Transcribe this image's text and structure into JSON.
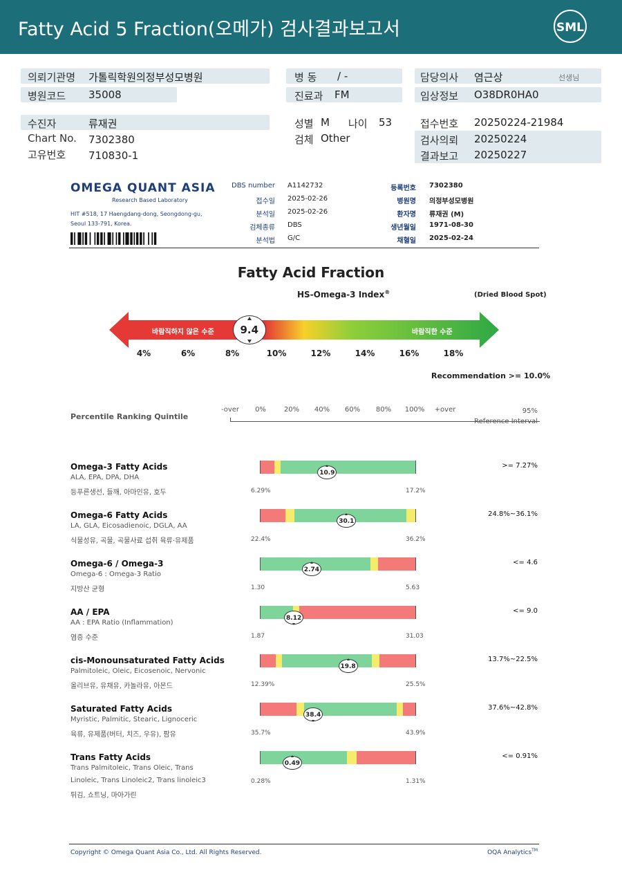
{
  "header": {
    "title": "Fatty Acid 5 Fraction(오메가) 검사결과보고서",
    "logo_text": "SML"
  },
  "patient_info": {
    "institution_label": "의뢰기관명",
    "institution": "가톨릭학원의정부성모병원",
    "hospital_code_label": "병원코드",
    "hospital_code": "35008",
    "ward_label": "병 동",
    "ward": "/ -",
    "dept_label": "진료과",
    "dept": "FM",
    "doctor_label": "담당의사",
    "doctor": "염근상",
    "doctor_suffix": "선생님",
    "clinical_label": "임상정보",
    "clinical": "O38DR0HA0",
    "patient_label": "수진자",
    "patient": "류재권",
    "chart_label": "Chart No.",
    "chart": "7302380",
    "id_label": "고유번호",
    "id": "710830-1",
    "sex_label": "성별",
    "sex": "M",
    "age_label": "나이",
    "age": "53",
    "specimen_label": "검체",
    "specimen": "Other",
    "receipt_label": "접수번호",
    "receipt": "20250224-21984",
    "request_label": "검사의뢰",
    "request": "20250224",
    "report_label": "결과보고",
    "report": "20250227"
  },
  "lab": {
    "name": "OMEGA QUANT ASIA",
    "tagline": "Research Based Laboratory",
    "address1": "HIT #518, 17 Haengdang-dong, Seongdong-gu,",
    "address2": "Seoul 133-791, Korea.",
    "fields_left": [
      {
        "label": "DBS number",
        "value": "A1142732"
      },
      {
        "label": "접수일",
        "value": "2025-02-26"
      },
      {
        "label": "분석일",
        "value": "2025-02-26"
      },
      {
        "label": "검체종류",
        "value": "DBS"
      },
      {
        "label": "분석법",
        "value": "G/C"
      }
    ],
    "fields_right": [
      {
        "label": "등록번호",
        "value": "7302380"
      },
      {
        "label": "병원명",
        "value": "의정부성모병원"
      },
      {
        "label": "환자명",
        "value": "류재권 (M)"
      },
      {
        "label": "생년월일",
        "value": "1971-08-30"
      },
      {
        "label": "채혈일",
        "value": "2025-02-24"
      }
    ]
  },
  "report": {
    "title": "Fatty Acid Fraction",
    "index_title": "HS-Omega-3 Index",
    "index_reg": "®",
    "dried": "(Dried Blood Spot)",
    "index_value": "9.4",
    "index_value_num": 9.4,
    "bad_label": "바람직하지 않은 수준",
    "good_label": "바람직한 수준",
    "ticks": [
      "4%",
      "6%",
      "8%",
      "10%",
      "12%",
      "14%",
      "16%",
      "18%"
    ],
    "recommendation": "Recommendation  >= 10.0%"
  },
  "percentile": {
    "label": "Percentile Ranking Quintile",
    "ticks": [
      "-over",
      "0%",
      "20%",
      "40%",
      "60%",
      "80%",
      "100%",
      "+over"
    ],
    "ref_label_1": "95%",
    "ref_label_2": "Reference Interval"
  },
  "rows": [
    {
      "title": "Omega-3 Fatty Acids",
      "sub": "ALA, EPA, DPA, DHA",
      "note": "등푸른생선, 들깨, 아마인유, 호두",
      "note2": "",
      "min": "6.29%",
      "max": "17.2%",
      "value": "10.9",
      "ref": ">= 7.27%",
      "marker_pct": 0.43,
      "arrow": "up",
      "segments": [
        {
          "w": 0.09,
          "c": "#f47a7a"
        },
        {
          "w": 0.04,
          "c": "#f4ec6a"
        },
        {
          "w": 0.87,
          "c": "#7ed49b"
        }
      ]
    },
    {
      "title": "Omega-6 Fatty Acids",
      "sub": "LA, GLA, Eicosadienoic, DGLA, AA",
      "note": "식물성유, 곡물, 곡물사료 섭취 육류·유제품",
      "note2": "",
      "min": "22.4%",
      "max": "36.2%",
      "value": "30.1",
      "ref": "24.8%~36.1%",
      "marker_pct": 0.555,
      "arrow": "up",
      "segments": [
        {
          "w": 0.16,
          "c": "#f47a7a"
        },
        {
          "w": 0.06,
          "c": "#f4ec6a"
        },
        {
          "w": 0.72,
          "c": "#7ed49b"
        },
        {
          "w": 0.06,
          "c": "#f4ec6a"
        }
      ]
    },
    {
      "title": "Omega-6 / Omega-3",
      "sub": "Omega-6 : Omega-3 Ratio",
      "note": "지방산 균형",
      "note2": "",
      "min": "1.30",
      "max": "5.63",
      "value": "2.74",
      "ref": "<= 4.6",
      "marker_pct": 0.33,
      "arrow": "up",
      "segments": [
        {
          "w": 0.71,
          "c": "#7ed49b"
        },
        {
          "w": 0.05,
          "c": "#f4ec6a"
        },
        {
          "w": 0.24,
          "c": "#f47a7a"
        }
      ]
    },
    {
      "title": "AA / EPA",
      "sub": "AA : EPA Ratio (Inflammation)",
      "note": "염증 수준",
      "note2": "",
      "min": "1.87",
      "max": "31.03",
      "value": "8.12",
      "ref": "<= 9.0",
      "marker_pct": 0.215,
      "arrow": "down",
      "segments": [
        {
          "w": 0.21,
          "c": "#7ed49b"
        },
        {
          "w": 0.04,
          "c": "#f4ec6a"
        },
        {
          "w": 0.75,
          "c": "#f47a7a"
        }
      ]
    },
    {
      "title": "cis-Monounsaturated Fatty Acids",
      "sub": "Palmitoleic, Oleic, Eicosenoic, Nervonic",
      "note": "올리브유, 유채유, 카놀라유, 아몬드",
      "note2": "",
      "min": "12.39%",
      "max": "25.5%",
      "value": "19.8",
      "ref": "13.7%~22.5%",
      "marker_pct": 0.565,
      "arrow": "up",
      "segments": [
        {
          "w": 0.1,
          "c": "#f47a7a"
        },
        {
          "w": 0.04,
          "c": "#f4ec6a"
        },
        {
          "w": 0.58,
          "c": "#7ed49b"
        },
        {
          "w": 0.05,
          "c": "#f4ec6a"
        },
        {
          "w": 0.23,
          "c": "#f47a7a"
        }
      ]
    },
    {
      "title": "Saturated Fatty Acids",
      "sub": "Myristic, Palmitic, Stearic, Lignoceric",
      "note": "육류, 유제품(버터, 치즈, 우유), 팜유",
      "note2": "",
      "min": "35.7%",
      "max": "43.9%",
      "value": "38.4",
      "ref": "37.6%~42.8%",
      "marker_pct": 0.34,
      "arrow": "down",
      "segments": [
        {
          "w": 0.23,
          "c": "#f47a7a"
        },
        {
          "w": 0.05,
          "c": "#f4ec6a"
        },
        {
          "w": 0.6,
          "c": "#7ed49b"
        },
        {
          "w": 0.04,
          "c": "#f4ec6a"
        },
        {
          "w": 0.08,
          "c": "#f47a7a"
        }
      ]
    },
    {
      "title": "Trans Fatty Acids",
      "sub": "Trans Palmitoleic, Trans Oleic, Trans",
      "note": "Linoleic, Trans Linoleic2, Trans linoleic3",
      "note2": "튀김, 쇼트닝, 마아가린",
      "min": "0.28%",
      "max": "1.31%",
      "value": "0.49",
      "ref": "<= 0.91%",
      "marker_pct": 0.205,
      "arrow": "up",
      "segments": [
        {
          "w": 0.56,
          "c": "#7ed49b"
        },
        {
          "w": 0.06,
          "c": "#f4ec6a"
        },
        {
          "w": 0.38,
          "c": "#f47a7a"
        }
      ]
    }
  ],
  "footer": {
    "copyright": "Copyright © Omega Quant Asia Co., Ltd.  All Rights Reserved.",
    "analytics": "OQA Analytics",
    "analytics_tm": "TM"
  },
  "colors": {
    "header": "#1c6e78",
    "red": "#f47a7a",
    "yellow": "#f4ec6a",
    "green": "#7ed49b"
  }
}
